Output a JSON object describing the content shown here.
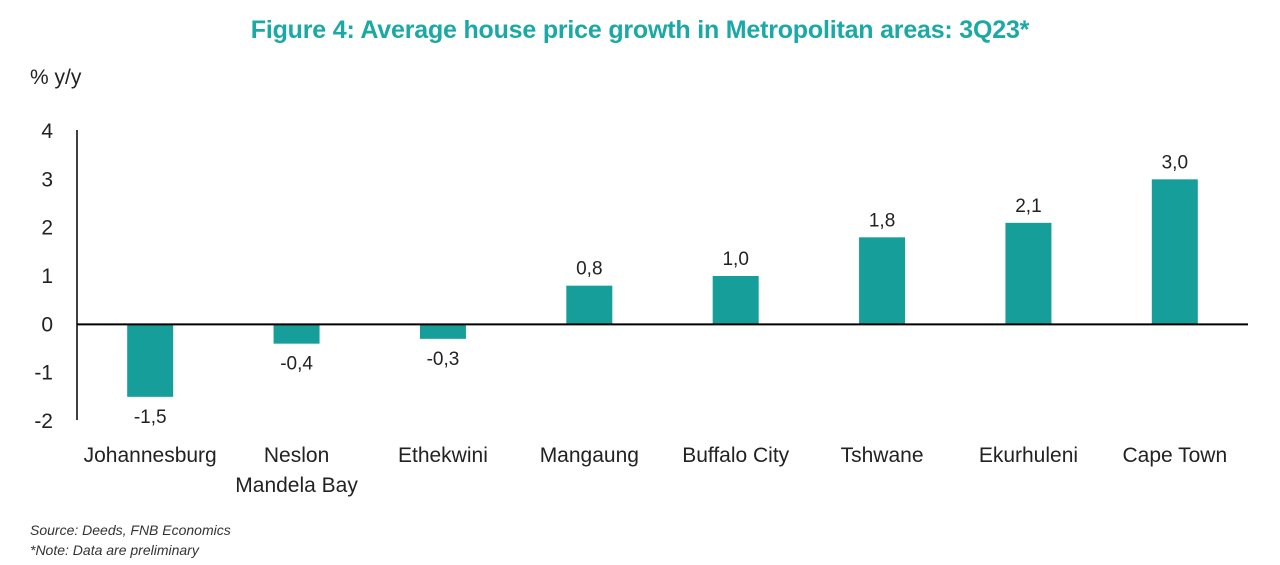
{
  "colors": {
    "bar": "#169e9a",
    "title": "#1aa9a4",
    "axis": "#000000"
  },
  "chart_data": {
    "type": "bar",
    "title": "Figure 4: Average house price growth in Metropolitan areas: 3Q23*",
    "ylabel": "% y/y",
    "xlabel": "",
    "ylim": [
      -2,
      4
    ],
    "yticks": [
      "4",
      "3",
      "2",
      "1",
      "0",
      "-1",
      "-2"
    ],
    "categories": [
      "Johannesburg",
      "Neslon Mandela Bay",
      "Ethekwini",
      "Mangaung",
      "Buffalo City",
      "Tshwane",
      "Ekurhuleni",
      "Cape Town"
    ],
    "category_lines": [
      [
        "Johannesburg"
      ],
      [
        "Neslon",
        "Mandela Bay"
      ],
      [
        "Ethekwini"
      ],
      [
        "Mangaung"
      ],
      [
        "Buffalo City"
      ],
      [
        "Tshwane"
      ],
      [
        "Ekurhuleni"
      ],
      [
        "Cape Town"
      ]
    ],
    "values": [
      -1.5,
      -0.4,
      -0.3,
      0.8,
      1.0,
      1.8,
      2.1,
      3.0
    ],
    "data_labels": [
      "-1,5",
      "-0,4",
      "-0,3",
      "0,8",
      "1,0",
      "1,8",
      "2,1",
      "3,0"
    ],
    "grid": false,
    "legend": "none"
  },
  "notes": {
    "source": "Source: Deeds, FNB Economics",
    "note": "*Note: Data are preliminary"
  }
}
